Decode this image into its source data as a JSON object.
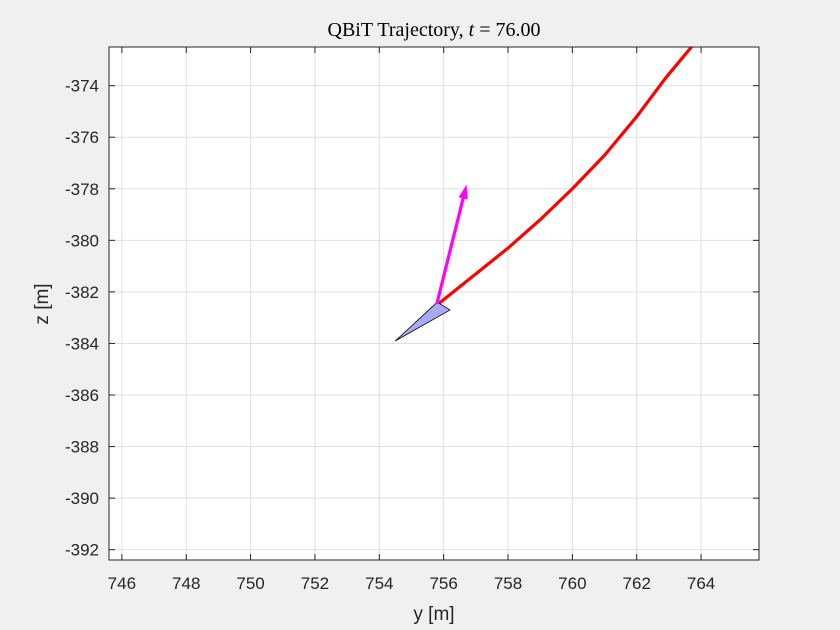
{
  "chart_data": {
    "type": "line",
    "title_prefix": "QBiT Trajectory, ",
    "title_var": "t",
    "title_eq": " = ",
    "title_value": "76.00",
    "xlabel": "y [m]",
    "ylabel": "z [m]",
    "xlim": [
      745.6,
      765.8
    ],
    "ylim": [
      -392.4,
      -372.5
    ],
    "x_ticks": [
      746,
      748,
      750,
      752,
      754,
      756,
      758,
      760,
      762,
      764
    ],
    "y_ticks": [
      -374,
      -376,
      -378,
      -380,
      -382,
      -384,
      -386,
      -388,
      -390,
      -392
    ],
    "grid": true,
    "series": [
      {
        "color": "#ff0000",
        "x": [
          755.9,
          756.5,
          757.2,
          758.0,
          759.0,
          760.0,
          761.0,
          762.0,
          762.9,
          763.7
        ],
        "y": [
          -382.4,
          -381.8,
          -381.1,
          -380.3,
          -379.2,
          -378.0,
          -376.7,
          -375.2,
          -373.7,
          -372.5
        ]
      }
    ],
    "vehicle": {
      "shape": "triangle",
      "fill": "#a9a9f5",
      "vertices": [
        [
          755.8,
          -382.4
        ],
        [
          756.2,
          -382.7
        ],
        [
          754.5,
          -383.9
        ]
      ]
    },
    "heading_arrow": {
      "color": "#ff00ff",
      "from": [
        755.8,
        -382.4
      ],
      "to": [
        756.7,
        -377.9
      ]
    }
  }
}
